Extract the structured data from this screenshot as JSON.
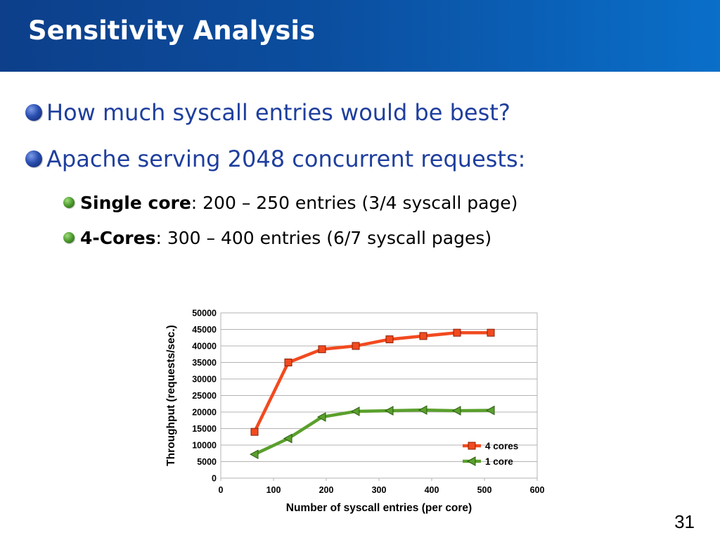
{
  "slide": {
    "title": "Sensitivity Analysis",
    "bullets": [
      {
        "text": "How much syscall entries would be best?"
      },
      {
        "text": "Apache serving 2048 concurrent requests:"
      }
    ],
    "sub_bullets": [
      {
        "bold": "Single core",
        "rest": ": 200 – 250 entries (3/4 syscall page)"
      },
      {
        "bold": "4-Cores",
        "rest": ": 300 – 400 entries (6/7 syscall pages)"
      }
    ],
    "page_number": "31"
  },
  "colors": {
    "header_dark": "#0d3f8a",
    "header_light": "#0a6fc9",
    "bullet_text": "#1f3f9e",
    "series_4_cores": "#f24a1f",
    "series_1_core": "#5aa02c"
  },
  "chart_data": {
    "type": "line",
    "title": "",
    "xlabel": "Number of syscall entries (per core)",
    "ylabel": "Throughput (requests/sec.)",
    "xlim": [
      0,
      600
    ],
    "ylim": [
      0,
      50000
    ],
    "xticks": [
      0,
      100,
      200,
      300,
      400,
      500,
      600
    ],
    "yticks": [
      0,
      5000,
      10000,
      15000,
      20000,
      25000,
      30000,
      35000,
      40000,
      45000,
      50000
    ],
    "grid": "horizontal",
    "legend_position": "bottom-right",
    "series": [
      {
        "name": "4 cores",
        "marker": "square",
        "color": "#f24a1f",
        "points": [
          {
            "x": 64,
            "y": 14000
          },
          {
            "x": 128,
            "y": 35000
          },
          {
            "x": 192,
            "y": 39000
          },
          {
            "x": 256,
            "y": 40000
          },
          {
            "x": 320,
            "y": 42000
          },
          {
            "x": 384,
            "y": 43000
          },
          {
            "x": 448,
            "y": 44000
          },
          {
            "x": 512,
            "y": 44000
          }
        ]
      },
      {
        "name": "1 core",
        "marker": "triangle-left",
        "color": "#5aa02c",
        "points": [
          {
            "x": 64,
            "y": 7200
          },
          {
            "x": 128,
            "y": 12000
          },
          {
            "x": 192,
            "y": 18500
          },
          {
            "x": 256,
            "y": 20200
          },
          {
            "x": 320,
            "y": 20400
          },
          {
            "x": 384,
            "y": 20600
          },
          {
            "x": 448,
            "y": 20400
          },
          {
            "x": 512,
            "y": 20500
          }
        ]
      }
    ]
  }
}
